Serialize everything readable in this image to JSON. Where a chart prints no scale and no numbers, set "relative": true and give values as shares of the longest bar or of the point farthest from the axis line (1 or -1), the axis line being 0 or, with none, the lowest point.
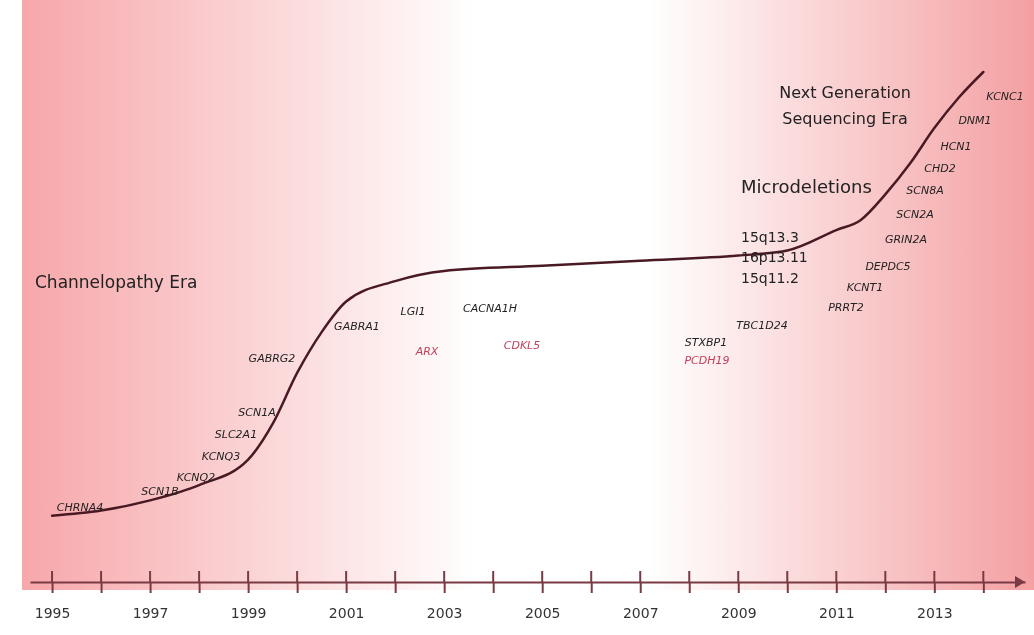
{
  "chart_data": {
    "type": "line",
    "relative": true,
    "x": [
      1995,
      1996,
      1997,
      1998,
      1999,
      1999.5,
      2000,
      2000.5,
      2001,
      2002,
      2003,
      2005,
      2007,
      2009,
      2010,
      2011,
      2011.5,
      2012,
      2012.5,
      2013,
      2013.5,
      2014
    ],
    "series": [
      {
        "color": "#4a1a24",
        "values": [
          0.13,
          0.14,
          0.16,
          0.19,
          0.24,
          0.31,
          0.41,
          0.49,
          0.55,
          0.59,
          0.61,
          0.62,
          0.63,
          0.64,
          0.65,
          0.69,
          0.71,
          0.76,
          0.82,
          0.89,
          0.95,
          1
        ]
      }
    ],
    "xlim": [
      1994.55,
      2014.85
    ],
    "xticks": [
      1995,
      {
        "value": 1996,
        "label": null
      },
      1997,
      {
        "value": 1998,
        "label": null
      },
      1999,
      {
        "value": 2000,
        "label": null
      },
      2001,
      {
        "value": 2002,
        "label": null
      },
      2003,
      {
        "value": 2004,
        "label": null
      },
      2005,
      {
        "value": 2006,
        "label": null
      },
      2007,
      {
        "value": 2008,
        "label": null
      },
      2009,
      {
        "value": 2010,
        "label": null
      },
      2011,
      {
        "value": 2012,
        "label": null
      },
      2013,
      {
        "value": 2014,
        "label": null
      }
    ],
    "marker": "none",
    "line_style": "solid",
    "annotations": [
      "Channelopathy Era",
      "Microdeletions",
      "15q13.3",
      "16p13.11",
      "15q11.2",
      "Next Generation",
      "Sequencing Era",
      "CHRNA4",
      "SCN1B",
      "KCNQ2",
      "KCNQ3",
      "SLC2A1",
      "SCN1A",
      "GABRG2",
      "GABRA1",
      "LGI1",
      "CACNA1H",
      "ARX",
      "CDKL5",
      "STXBP1",
      "PCDH19",
      "TBC1D24",
      "PRRT2",
      "KCNT1",
      "DEPDC5",
      "GRIN2A",
      "SCN2A",
      "SCN8A",
      "CHD2",
      "HCN1",
      "DNM1",
      "KCNC1"
    ]
  }
}
